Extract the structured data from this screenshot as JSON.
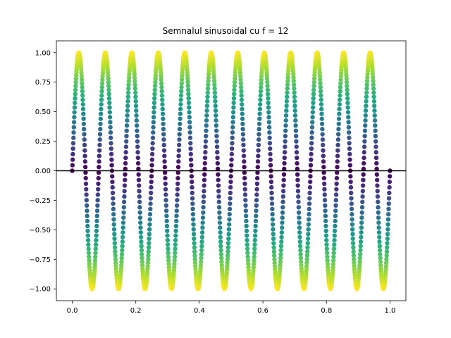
{
  "chart_data": {
    "type": "scatter",
    "title": "Semnalul sinusoidal cu f = 12",
    "xlabel": "",
    "ylabel": "",
    "function": "sin(2*pi*f*t)",
    "frequency": 12,
    "x_range": [
      0.0,
      1.0
    ],
    "xlim": [
      -0.05,
      1.05
    ],
    "ylim": [
      -1.1,
      1.1
    ],
    "x_ticks": [
      0.0,
      0.2,
      0.4,
      0.6,
      0.8,
      1.0
    ],
    "x_tick_labels": [
      "0.0",
      "0.2",
      "0.4",
      "0.6",
      "0.8",
      "1.0"
    ],
    "y_ticks": [
      1.0,
      0.75,
      0.5,
      0.25,
      0.0,
      -0.25,
      -0.5,
      -0.75,
      -1.0
    ],
    "y_tick_labels": [
      "1.00",
      "0.75",
      "0.50",
      "0.25",
      "0.00",
      "−0.25",
      "−0.50",
      "−0.75",
      "−1.00"
    ],
    "color_encoding": "abs(y)",
    "colormap": "viridis",
    "reference_line": {
      "y": 0,
      "color": "#000000"
    },
    "grid": false,
    "legend": "none"
  }
}
